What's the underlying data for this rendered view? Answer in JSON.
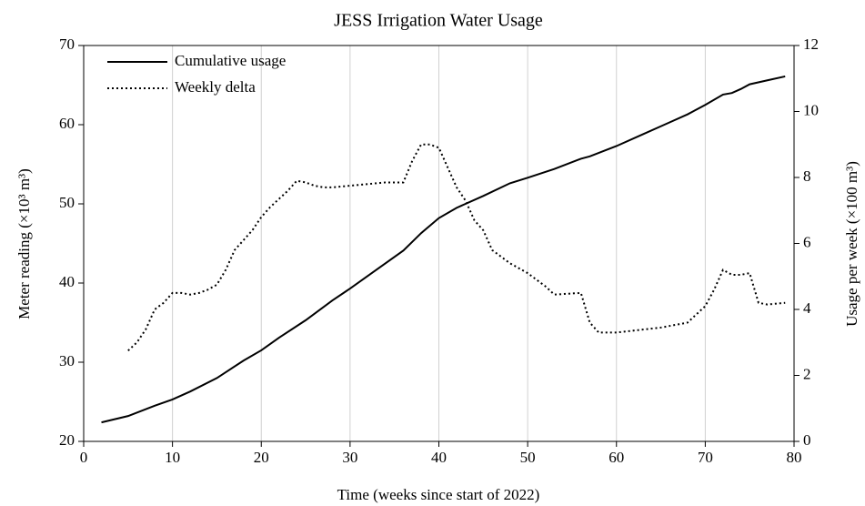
{
  "chart_data": {
    "type": "line",
    "title": "JESS Irrigation Water Usage",
    "xlabel": "Time  (weeks since start of 2022)",
    "ylabel": "Meter reading  (×10³ m³)",
    "y2label": "Usage per week  (×100 m³)",
    "xlim": [
      0,
      80
    ],
    "xticks": [
      0,
      10,
      20,
      30,
      40,
      50,
      60,
      70,
      80
    ],
    "ylim": [
      20,
      70
    ],
    "yticks": [
      20,
      30,
      40,
      50,
      60,
      70
    ],
    "y2lim": [
      0,
      12
    ],
    "y2ticks": [
      0,
      2,
      4,
      6,
      8,
      10,
      12
    ],
    "grid": true,
    "legend": "upper left",
    "series": [
      {
        "name": "Cumulative usage",
        "color": "#000000",
        "dash": "solid",
        "x": [
          2,
          5,
          8,
          10,
          12,
          15,
          18,
          20,
          22,
          25,
          28,
          30,
          33,
          36,
          38,
          40,
          42,
          45,
          48,
          50,
          53,
          56,
          57,
          60,
          63,
          65,
          68,
          70,
          72,
          73,
          74,
          75,
          77,
          79
        ],
        "values": [
          22.4,
          23.2,
          24.5,
          25.3,
          26.3,
          28,
          30.2,
          31.5,
          33.1,
          35.3,
          37.8,
          39.3,
          41.7,
          44.1,
          46.3,
          48.2,
          49.5,
          51,
          52.6,
          53.3,
          54.4,
          55.7,
          56,
          57.3,
          58.8,
          59.8,
          61.3,
          62.5,
          63.8,
          64,
          64.5,
          65.1,
          65.6,
          66.1
        ]
      },
      {
        "name": "Weekly delta",
        "color": "#000000",
        "dash": "dotted",
        "axis": "y2",
        "x": [
          5,
          6,
          7,
          8,
          9,
          10,
          11,
          12,
          13,
          14,
          15,
          16,
          17,
          18,
          19,
          20,
          21,
          22,
          23,
          24,
          25,
          26,
          27,
          28,
          30,
          32,
          34,
          36,
          37,
          38,
          39,
          40,
          41,
          42,
          43,
          44,
          45,
          46,
          47,
          48,
          50,
          52,
          53,
          56,
          57,
          58,
          60,
          65,
          68,
          70,
          71,
          72,
          73,
          74,
          75,
          76,
          77,
          79
        ],
        "values": [
          2.75,
          3.0,
          3.4,
          4.0,
          4.2,
          4.5,
          4.5,
          4.45,
          4.5,
          4.6,
          4.75,
          5.2,
          5.8,
          6.1,
          6.4,
          6.8,
          7.1,
          7.35,
          7.6,
          7.9,
          7.85,
          7.75,
          7.7,
          7.7,
          7.75,
          7.8,
          7.85,
          7.85,
          8.5,
          9.0,
          9.0,
          8.9,
          8.3,
          7.7,
          7.3,
          6.7,
          6.4,
          5.8,
          5.6,
          5.4,
          5.1,
          4.7,
          4.45,
          4.5,
          3.6,
          3.3,
          3.3,
          3.45,
          3.6,
          4.1,
          4.6,
          5.2,
          5.05,
          5.05,
          5.1,
          4.2,
          4.15,
          4.2
        ]
      }
    ]
  }
}
